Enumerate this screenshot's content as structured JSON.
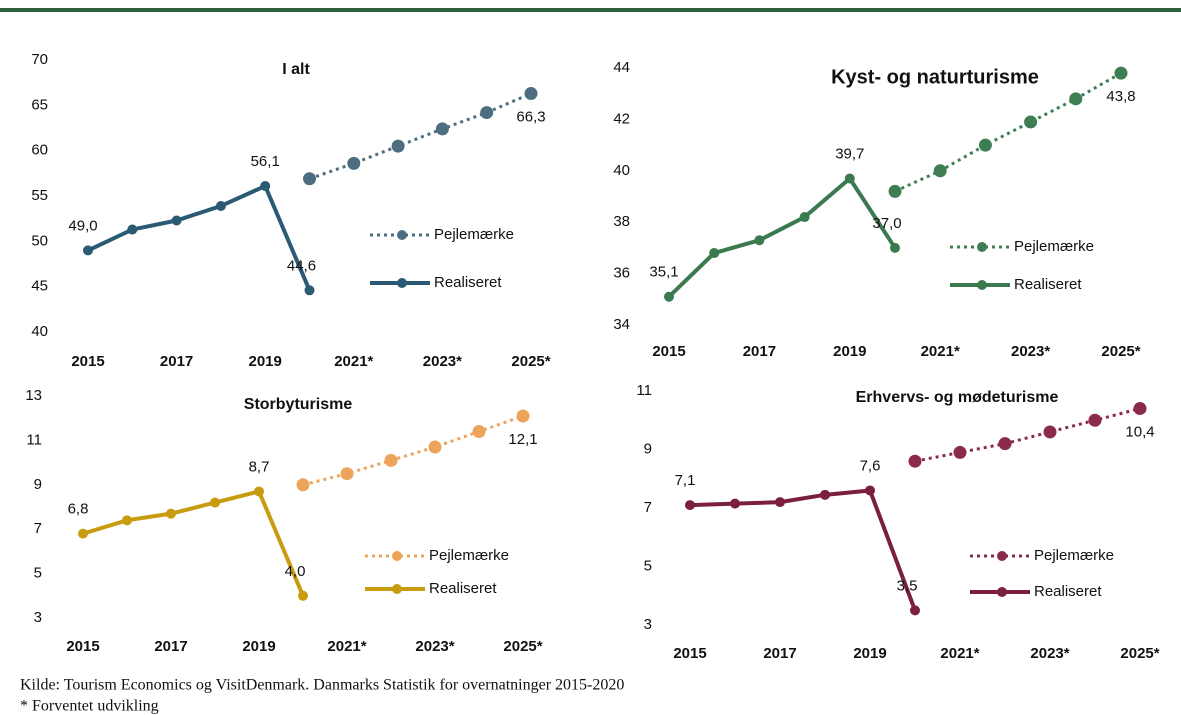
{
  "chart_data": [
    {
      "type": "line",
      "title": "I alt",
      "categories": [
        "2015",
        null,
        "2017",
        null,
        "2019",
        null,
        "2021*",
        null,
        "2023*",
        null,
        "2025*"
      ],
      "ylim": [
        40,
        70
      ],
      "yticks": [
        40,
        45,
        50,
        55,
        60,
        65,
        70
      ],
      "series": [
        {
          "name": "Pejlemærke",
          "color": "#4d6e80",
          "line_style": "dotted",
          "values": [
            null,
            null,
            null,
            null,
            null,
            56.9,
            58.6,
            60.5,
            62.4,
            64.2,
            66.3
          ],
          "value_labels": [
            null,
            null,
            null,
            null,
            null,
            null,
            null,
            null,
            null,
            null,
            "66,3"
          ]
        },
        {
          "name": "Realiseret",
          "color": "#2b5a74",
          "line_style": "solid",
          "values": [
            49.0,
            51.3,
            52.3,
            53.9,
            56.1,
            44.6,
            null,
            null,
            null,
            null,
            null
          ],
          "value_labels": [
            "49,0",
            null,
            null,
            null,
            "56,1",
            "44,6",
            null,
            null,
            null,
            null,
            null
          ]
        }
      ]
    },
    {
      "type": "line",
      "title": "Kyst- og naturturisme",
      "categories": [
        "2015",
        null,
        "2017",
        null,
        "2019",
        null,
        "2021*",
        null,
        "2023*",
        null,
        "2025*"
      ],
      "ylim": [
        34,
        44
      ],
      "yticks": [
        34,
        36,
        38,
        40,
        42,
        44
      ],
      "series": [
        {
          "name": "Pejlemærke",
          "color": "#3f7d52",
          "line_style": "dotted",
          "values": [
            null,
            null,
            null,
            null,
            null,
            39.2,
            40.0,
            41.0,
            41.9,
            42.8,
            43.8
          ],
          "value_labels": [
            null,
            null,
            null,
            null,
            null,
            null,
            null,
            null,
            null,
            null,
            "43,8"
          ]
        },
        {
          "name": "Realiseret",
          "color": "#3b7a4f",
          "line_style": "solid",
          "values": [
            35.1,
            36.8,
            37.3,
            38.2,
            39.7,
            37.0,
            null,
            null,
            null,
            null,
            null
          ],
          "value_labels": [
            "35,1",
            null,
            null,
            null,
            "39,7",
            "37,0",
            null,
            null,
            null,
            null,
            null
          ]
        }
      ]
    },
    {
      "type": "line",
      "title": "Storbyturisme",
      "categories": [
        "2015",
        null,
        "2017",
        null,
        "2019",
        null,
        "2021*",
        null,
        "2023*",
        null,
        "2025*"
      ],
      "ylim": [
        3,
        13
      ],
      "yticks": [
        3,
        5,
        7,
        9,
        11,
        13
      ],
      "series": [
        {
          "name": "Pejlemærke",
          "color": "#eda35a",
          "line_style": "dotted",
          "values": [
            null,
            null,
            null,
            null,
            null,
            9.0,
            9.5,
            10.1,
            10.7,
            11.4,
            12.1
          ],
          "value_labels": [
            null,
            null,
            null,
            null,
            null,
            null,
            null,
            null,
            null,
            null,
            "12,1"
          ]
        },
        {
          "name": "Realiseret",
          "color": "#c99c10",
          "line_style": "solid",
          "values": [
            6.8,
            7.4,
            7.7,
            8.2,
            8.7,
            4.0,
            null,
            null,
            null,
            null,
            null
          ],
          "value_labels": [
            "6,8",
            null,
            null,
            null,
            "8,7",
            "4,0",
            null,
            null,
            null,
            null,
            null
          ]
        }
      ]
    },
    {
      "type": "line",
      "title": "Erhvervs- og mødeturisme",
      "categories": [
        "2015",
        null,
        "2017",
        null,
        "2019",
        null,
        "2021*",
        null,
        "2023*",
        null,
        "2025*"
      ],
      "ylim": [
        3,
        11
      ],
      "yticks": [
        3,
        5,
        7,
        9,
        11
      ],
      "series": [
        {
          "name": "Pejlemærke",
          "color": "#8a2b4a",
          "line_style": "dotted",
          "values": [
            null,
            null,
            null,
            null,
            null,
            8.6,
            8.9,
            9.2,
            9.6,
            10.0,
            10.4
          ],
          "value_labels": [
            null,
            null,
            null,
            null,
            null,
            null,
            null,
            null,
            null,
            null,
            "10,4"
          ]
        },
        {
          "name": "Realiseret",
          "color": "#7a1f3d",
          "line_style": "solid",
          "values": [
            7.1,
            7.15,
            7.2,
            7.45,
            7.6,
            3.5,
            null,
            null,
            null,
            null,
            null
          ],
          "value_labels": [
            "7,1",
            null,
            null,
            null,
            "7,6",
            "3,5",
            null,
            null,
            null,
            null,
            null
          ]
        }
      ]
    }
  ],
  "footer": [
    "Kilde: Tourism Economics og VisitDenmark. Danmarks Statistik for overnatninger 2015-2020",
    "* Forventet udvikling"
  ]
}
